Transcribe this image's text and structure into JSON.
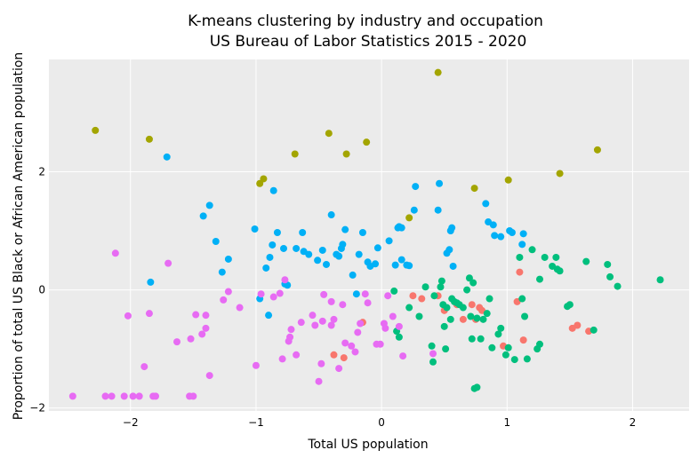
{
  "chart_data": {
    "type": "scatter",
    "title": "K-means clustering by industry and occupation",
    "subtitle": "US Bureau of Labor Statistics 2015 - 2020",
    "xlabel": "Total US population",
    "ylabel": "Proportion of total US Black or African American population",
    "xlim": [
      -2.65,
      2.45
    ],
    "ylim": [
      -2.05,
      3.9
    ],
    "x_ticks": [
      -2,
      -1,
      0,
      1,
      2
    ],
    "y_ticks": [
      -2,
      0,
      2
    ],
    "x_tick_labels": [
      "−2",
      "−1",
      "0",
      "1",
      "2"
    ],
    "y_tick_labels": [
      "−2",
      "0",
      "2"
    ],
    "grid": true,
    "legend": "none",
    "series": [
      {
        "color": "#f8766d",
        "points": [
          [
            0.25,
            -0.1
          ],
          [
            0.32,
            -0.15
          ],
          [
            0.45,
            -0.1
          ],
          [
            0.5,
            -0.35
          ],
          [
            0.6,
            -0.25
          ],
          [
            0.72,
            -0.25
          ],
          [
            0.78,
            -0.3
          ],
          [
            0.8,
            -0.35
          ],
          [
            0.75,
            -0.5
          ],
          [
            0.65,
            -0.5
          ],
          [
            0.97,
            -0.95
          ],
          [
            1.08,
            -0.2
          ],
          [
            1.13,
            -0.85
          ],
          [
            1.1,
            0.3
          ],
          [
            1.52,
            -0.65
          ],
          [
            1.56,
            -0.6
          ],
          [
            1.65,
            -0.7
          ],
          [
            -0.38,
            -1.1
          ],
          [
            -0.3,
            -1.15
          ],
          [
            -0.15,
            -0.55
          ]
        ]
      },
      {
        "color": "#a3a500",
        "points": [
          [
            -2.28,
            2.7
          ],
          [
            -1.85,
            2.55
          ],
          [
            -0.97,
            1.8
          ],
          [
            -0.94,
            1.88
          ],
          [
            -0.69,
            2.3
          ],
          [
            -0.42,
            2.65
          ],
          [
            -0.28,
            2.3
          ],
          [
            -0.12,
            2.5
          ],
          [
            0.22,
            1.22
          ],
          [
            0.45,
            3.68
          ],
          [
            0.74,
            1.72
          ],
          [
            1.01,
            1.86
          ],
          [
            1.42,
            1.97
          ],
          [
            1.72,
            2.37
          ]
        ]
      },
      {
        "color": "#00bf7d",
        "points": [
          [
            0.1,
            -0.02
          ],
          [
            0.12,
            -0.7
          ],
          [
            0.14,
            -0.8
          ],
          [
            0.22,
            -0.3
          ],
          [
            0.3,
            -0.45
          ],
          [
            0.35,
            0.05
          ],
          [
            0.4,
            -0.95
          ],
          [
            0.41,
            -1.22
          ],
          [
            0.42,
            -0.1
          ],
          [
            0.47,
            0.05
          ],
          [
            0.48,
            0.15
          ],
          [
            0.49,
            -0.25
          ],
          [
            0.5,
            -0.62
          ],
          [
            0.51,
            -1.0
          ],
          [
            0.52,
            -0.3
          ],
          [
            0.55,
            -0.5
          ],
          [
            0.56,
            -0.15
          ],
          [
            0.58,
            -0.2
          ],
          [
            0.6,
            -0.22
          ],
          [
            0.62,
            -0.25
          ],
          [
            0.65,
            -0.3
          ],
          [
            0.68,
            0.0
          ],
          [
            0.7,
            0.2
          ],
          [
            0.71,
            -0.45
          ],
          [
            0.72,
            -0.83
          ],
          [
            0.73,
            0.12
          ],
          [
            0.76,
            -0.48
          ],
          [
            0.79,
            -0.83
          ],
          [
            0.81,
            -0.5
          ],
          [
            0.84,
            -0.4
          ],
          [
            0.86,
            -0.15
          ],
          [
            0.88,
            -0.98
          ],
          [
            0.93,
            -0.75
          ],
          [
            0.95,
            -0.65
          ],
          [
            0.99,
            -1.1
          ],
          [
            1.01,
            -0.98
          ],
          [
            1.06,
            -1.18
          ],
          [
            1.1,
            0.55
          ],
          [
            1.12,
            -0.15
          ],
          [
            1.14,
            -0.45
          ],
          [
            1.16,
            -1.17
          ],
          [
            1.2,
            0.68
          ],
          [
            1.24,
            -1.0
          ],
          [
            1.26,
            -0.92
          ],
          [
            1.26,
            0.18
          ],
          [
            1.3,
            0.55
          ],
          [
            1.36,
            0.4
          ],
          [
            1.39,
            0.55
          ],
          [
            1.4,
            0.35
          ],
          [
            1.42,
            0.32
          ],
          [
            1.48,
            -0.28
          ],
          [
            1.5,
            -0.25
          ],
          [
            1.63,
            0.48
          ],
          [
            1.69,
            -0.68
          ],
          [
            1.8,
            0.43
          ],
          [
            1.82,
            0.22
          ],
          [
            1.88,
            0.06
          ],
          [
            2.22,
            0.17
          ],
          [
            0.74,
            -1.67
          ],
          [
            0.76,
            -1.65
          ]
        ]
      },
      {
        "color": "#00b0f6",
        "points": [
          [
            -1.84,
            0.13
          ],
          [
            -1.71,
            2.25
          ],
          [
            -1.42,
            1.25
          ],
          [
            -1.37,
            1.43
          ],
          [
            -1.32,
            0.82
          ],
          [
            -1.27,
            0.3
          ],
          [
            -1.22,
            0.52
          ],
          [
            -1.01,
            1.03
          ],
          [
            -0.97,
            -0.15
          ],
          [
            -0.92,
            0.37
          ],
          [
            -0.9,
            -0.43
          ],
          [
            -0.89,
            0.55
          ],
          [
            -0.87,
            0.76
          ],
          [
            -0.86,
            1.68
          ],
          [
            -0.83,
            0.97
          ],
          [
            -0.78,
            0.7
          ],
          [
            -0.77,
            0.1
          ],
          [
            -0.75,
            0.08
          ],
          [
            -0.68,
            0.7
          ],
          [
            -0.63,
            0.97
          ],
          [
            -0.62,
            0.65
          ],
          [
            -0.58,
            0.6
          ],
          [
            -0.51,
            0.5
          ],
          [
            -0.47,
            0.67
          ],
          [
            -0.44,
            0.43
          ],
          [
            -0.4,
            1.27
          ],
          [
            -0.36,
            0.6
          ],
          [
            -0.34,
            0.57
          ],
          [
            -0.32,
            0.7
          ],
          [
            -0.31,
            0.77
          ],
          [
            -0.29,
            1.02
          ],
          [
            -0.23,
            0.25
          ],
          [
            -0.2,
            -0.07
          ],
          [
            -0.18,
            0.6
          ],
          [
            -0.15,
            0.97
          ],
          [
            -0.11,
            0.47
          ],
          [
            -0.09,
            0.4
          ],
          [
            -0.05,
            0.44
          ],
          [
            -0.03,
            0.71
          ],
          [
            0.06,
            0.83
          ],
          [
            0.11,
            0.42
          ],
          [
            0.13,
            1.05
          ],
          [
            0.14,
            1.07
          ],
          [
            0.16,
            1.05
          ],
          [
            0.16,
            0.51
          ],
          [
            0.2,
            0.42
          ],
          [
            0.22,
            0.41
          ],
          [
            0.26,
            1.35
          ],
          [
            0.27,
            1.75
          ],
          [
            0.45,
            1.35
          ],
          [
            0.46,
            1.8
          ],
          [
            0.52,
            0.62
          ],
          [
            0.54,
            0.68
          ],
          [
            0.55,
            1.0
          ],
          [
            0.56,
            1.05
          ],
          [
            0.57,
            0.4
          ],
          [
            0.83,
            1.46
          ],
          [
            0.85,
            1.15
          ],
          [
            0.89,
            1.1
          ],
          [
            0.9,
            0.92
          ],
          [
            0.95,
            0.9
          ],
          [
            1.02,
            1.0
          ],
          [
            1.04,
            0.97
          ],
          [
            1.12,
            0.77
          ],
          [
            1.13,
            0.95
          ]
        ]
      },
      {
        "color": "#e76bf3",
        "points": [
          [
            -2.46,
            -1.8
          ],
          [
            -2.2,
            -1.8
          ],
          [
            -2.15,
            -1.8
          ],
          [
            -2.05,
            -1.8
          ],
          [
            -1.98,
            -1.8
          ],
          [
            -1.93,
            -1.8
          ],
          [
            -1.82,
            -1.8
          ],
          [
            -1.8,
            -1.8
          ],
          [
            -1.53,
            -1.8
          ],
          [
            -1.5,
            -1.8
          ],
          [
            -2.12,
            0.62
          ],
          [
            -2.02,
            -0.44
          ],
          [
            -1.89,
            -1.3
          ],
          [
            -1.85,
            -0.4
          ],
          [
            -1.7,
            0.45
          ],
          [
            -1.63,
            -0.88
          ],
          [
            -1.52,
            -0.83
          ],
          [
            -1.48,
            -0.42
          ],
          [
            -1.43,
            -0.75
          ],
          [
            -1.4,
            -0.65
          ],
          [
            -1.4,
            -0.43
          ],
          [
            -1.37,
            -1.45
          ],
          [
            -1.26,
            -0.17
          ],
          [
            -1.22,
            -0.03
          ],
          [
            -1.13,
            -0.3
          ],
          [
            -1.0,
            -1.28
          ],
          [
            -0.96,
            -0.07
          ],
          [
            -0.86,
            -0.12
          ],
          [
            -0.81,
            -0.06
          ],
          [
            -0.79,
            -1.17
          ],
          [
            -0.77,
            0.17
          ],
          [
            -0.74,
            -0.87
          ],
          [
            -0.73,
            -0.8
          ],
          [
            -0.72,
            -0.67
          ],
          [
            -0.68,
            -1.1
          ],
          [
            -0.64,
            -0.55
          ],
          [
            -0.55,
            -0.43
          ],
          [
            -0.53,
            -0.6
          ],
          [
            -0.5,
            -1.55
          ],
          [
            -0.48,
            -1.25
          ],
          [
            -0.47,
            -0.53
          ],
          [
            -0.46,
            -0.08
          ],
          [
            -0.4,
            -0.6
          ],
          [
            -0.4,
            -0.2
          ],
          [
            -0.38,
            -0.5
          ],
          [
            -0.34,
            -1.33
          ],
          [
            -0.31,
            -0.25
          ],
          [
            -0.29,
            -0.9
          ],
          [
            -0.24,
            -0.95
          ],
          [
            -0.21,
            -1.05
          ],
          [
            -0.19,
            -0.72
          ],
          [
            -0.17,
            -0.57
          ],
          [
            -0.13,
            -0.07
          ],
          [
            -0.11,
            -0.22
          ],
          [
            -0.04,
            -0.92
          ],
          [
            -0.01,
            -0.92
          ],
          [
            0.02,
            -0.57
          ],
          [
            0.03,
            -0.65
          ],
          [
            0.05,
            -0.1
          ],
          [
            0.09,
            -0.45
          ],
          [
            0.14,
            -0.62
          ],
          [
            0.17,
            -1.12
          ],
          [
            0.41,
            -1.08
          ]
        ]
      }
    ]
  }
}
